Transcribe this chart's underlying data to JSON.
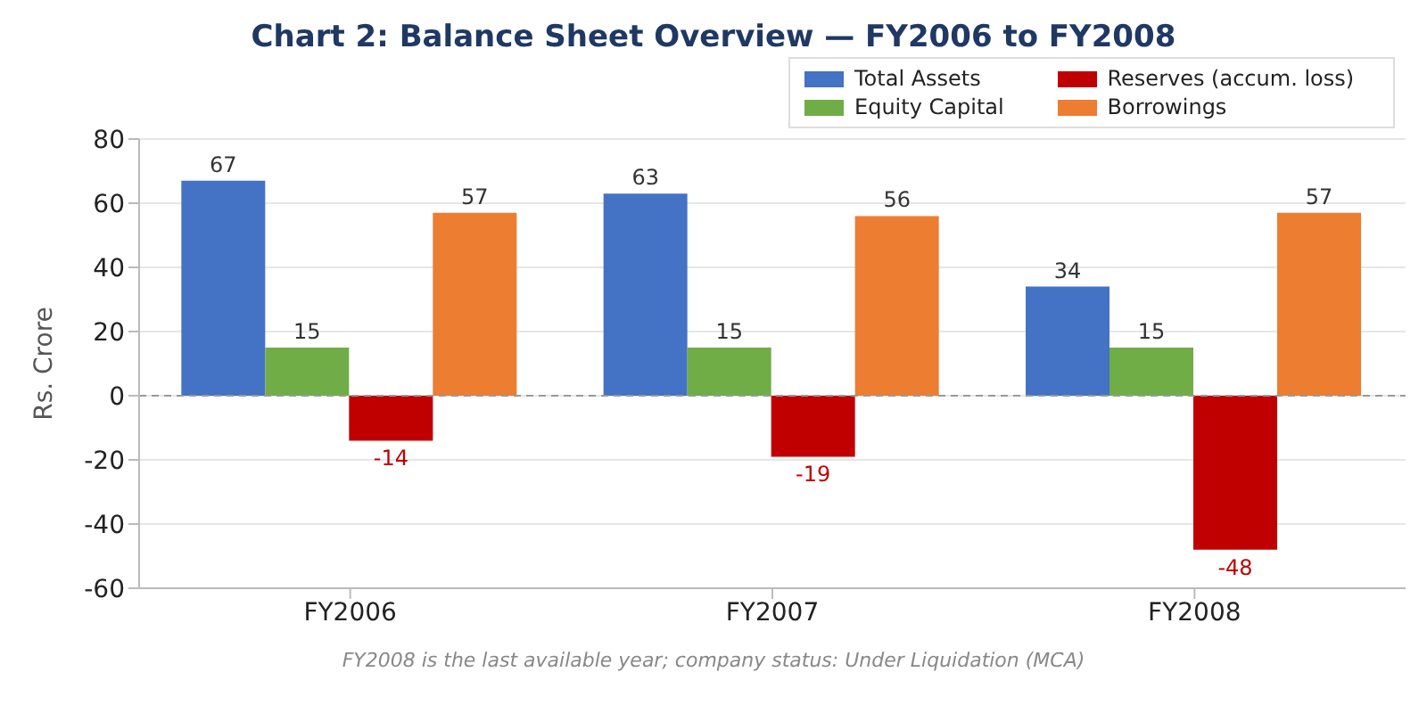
{
  "chart_data": {
    "type": "bar",
    "title": "Chart 2: Balance Sheet Overview — FY2006 to FY2008",
    "ylabel": "Rs. Crore",
    "categories": [
      "FY2006",
      "FY2007",
      "FY2008"
    ],
    "series": [
      {
        "name": "Total Assets",
        "color": "#4472c4",
        "values": [
          67,
          63,
          34
        ]
      },
      {
        "name": "Equity Capital",
        "color": "#70ad47",
        "values": [
          15,
          15,
          15
        ]
      },
      {
        "name": "Reserves (accum. loss)",
        "color": "#c00000",
        "values": [
          -14,
          -19,
          -48
        ]
      },
      {
        "name": "Borrowings",
        "color": "#ed7d31",
        "values": [
          57,
          56,
          57
        ]
      }
    ],
    "ylim": [
      -60,
      80
    ],
    "yticks": [
      -60,
      -40,
      -20,
      0,
      20,
      40,
      60,
      80
    ],
    "grid": "y",
    "legend": "top right",
    "data_labels": true,
    "ref_lines": [
      {
        "axis": "y",
        "value": 0,
        "color": "#999999",
        "line_style": "dashed"
      }
    ],
    "annotations": [
      "FY2008 is the last available year; company status: Under Liquidation (MCA)"
    ]
  }
}
